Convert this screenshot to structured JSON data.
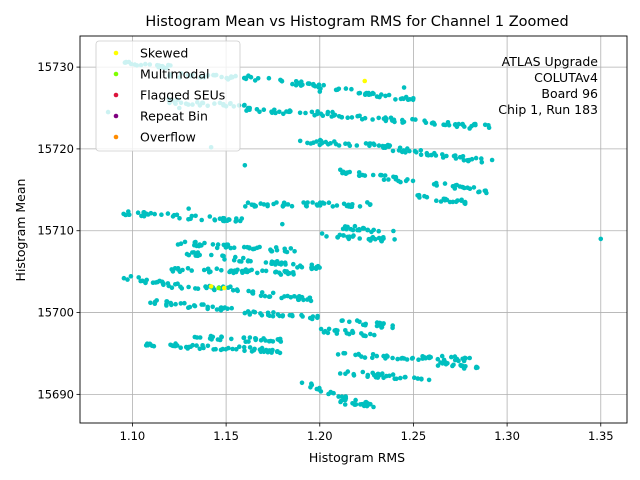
{
  "chart_data": {
    "type": "scatter",
    "title": "Histogram Mean vs Histogram RMS for Channel 1 Zoomed",
    "xlabel": "Histogram RMS",
    "ylabel": "Histogram Mean",
    "xlim": [
      1.072,
      1.364
    ],
    "ylim": [
      15686.5,
      15733.8
    ],
    "xticks": [
      "1.10",
      "1.15",
      "1.20",
      "1.25",
      "1.30",
      "1.35"
    ],
    "xtick_values": [
      1.1,
      1.15,
      1.2,
      1.25,
      1.3,
      1.35
    ],
    "yticks": [
      "15690",
      "15700",
      "15710",
      "15720",
      "15730"
    ],
    "ytick_values": [
      15690,
      15700,
      15710,
      15720,
      15730
    ],
    "grid": true,
    "legend_position": "top-left",
    "legend": [
      {
        "label": "Skewed",
        "color": "#ffff00"
      },
      {
        "label": "Multimodal",
        "color": "#7fff00"
      },
      {
        "label": "Flagged SEUs",
        "color": "#dc143c"
      },
      {
        "label": "Repeat Bin",
        "color": "#800080"
      },
      {
        "label": "Overflow",
        "color": "#ff8c00"
      }
    ],
    "annotation": [
      "ATLAS Upgrade",
      "COLUTAv4",
      "Board 96",
      "Chip 1, Run 183"
    ],
    "main_series_color": "#00bfbf",
    "bands": [
      {
        "y0": 15730.5,
        "y1": 15730.1,
        "x0": 1.09,
        "x1": 1.12
      },
      {
        "y0": 15729.0,
        "y1": 15728.6,
        "x0": 1.12,
        "x1": 1.17
      },
      {
        "y0": 15728.6,
        "y1": 15726.0,
        "x0": 1.17,
        "x1": 1.25
      },
      {
        "y0": 15725.8,
        "y1": 15725.2,
        "x0": 1.12,
        "x1": 1.16
      },
      {
        "y0": 15724.8,
        "y1": 15724.2,
        "x0": 1.16,
        "x1": 1.21
      },
      {
        "y0": 15724.0,
        "y1": 15722.7,
        "x0": 1.21,
        "x1": 1.29
      },
      {
        "y0": 15721.0,
        "y1": 15720.2,
        "x0": 1.19,
        "x1": 1.24
      },
      {
        "y0": 15720.0,
        "y1": 15718.3,
        "x0": 1.24,
        "x1": 1.295
      },
      {
        "y0": 15717.3,
        "y1": 15716.0,
        "x0": 1.21,
        "x1": 1.25
      },
      {
        "y0": 15715.8,
        "y1": 15714.8,
        "x0": 1.26,
        "x1": 1.29
      },
      {
        "y0": 15714.2,
        "y1": 15713.5,
        "x0": 1.25,
        "x1": 1.28
      },
      {
        "y0": 15713.2,
        "y1": 15713.2,
        "x0": 1.16,
        "x1": 1.23
      },
      {
        "y0": 15712.2,
        "y1": 15711.2,
        "x0": 1.095,
        "x1": 1.16
      },
      {
        "y0": 15710.5,
        "y1": 15709.8,
        "x0": 1.21,
        "x1": 1.24
      },
      {
        "y0": 15709.5,
        "y1": 15708.8,
        "x0": 1.2,
        "x1": 1.24
      },
      {
        "y0": 15708.5,
        "y1": 15707.5,
        "x0": 1.125,
        "x1": 1.19
      },
      {
        "y0": 15707.3,
        "y1": 15705.5,
        "x0": 1.125,
        "x1": 1.2
      },
      {
        "y0": 15705.3,
        "y1": 15704.8,
        "x0": 1.12,
        "x1": 1.19
      },
      {
        "y0": 15704.3,
        "y1": 15703.5,
        "x0": 1.095,
        "x1": 1.12
      },
      {
        "y0": 15703.3,
        "y1": 15702.8,
        "x0": 1.12,
        "x1": 1.16
      },
      {
        "y0": 15702.5,
        "y1": 15701.5,
        "x0": 1.16,
        "x1": 1.2
      },
      {
        "y0": 15701.3,
        "y1": 15700.2,
        "x0": 1.11,
        "x1": 1.16
      },
      {
        "y0": 15700.0,
        "y1": 15699.3,
        "x0": 1.16,
        "x1": 1.2
      },
      {
        "y0": 15699.0,
        "y1": 15698.3,
        "x0": 1.21,
        "x1": 1.24
      },
      {
        "y0": 15697.8,
        "y1": 15697.3,
        "x0": 1.2,
        "x1": 1.23
      },
      {
        "y0": 15697.0,
        "y1": 15696.5,
        "x0": 1.13,
        "x1": 1.18
      },
      {
        "y0": 15696.2,
        "y1": 15695.3,
        "x0": 1.1,
        "x1": 1.18
      },
      {
        "y0": 15694.8,
        "y1": 15694.3,
        "x0": 1.21,
        "x1": 1.28
      },
      {
        "y0": 15693.8,
        "y1": 15693.2,
        "x0": 1.26,
        "x1": 1.285
      },
      {
        "y0": 15692.7,
        "y1": 15691.8,
        "x0": 1.21,
        "x1": 1.26
      },
      {
        "y0": 15691.5,
        "y1": 15689.0,
        "x0": 1.19,
        "x1": 1.22
      },
      {
        "y0": 15689.0,
        "y1": 15688.7,
        "x0": 1.21,
        "x1": 1.23
      }
    ],
    "isolated_points": [
      {
        "x": 1.35,
        "y": 15709.0
      },
      {
        "x": 1.087,
        "y": 15724.5
      },
      {
        "x": 1.125,
        "y": 15725.0
      },
      {
        "x": 1.142,
        "y": 15720.2
      },
      {
        "x": 1.16,
        "y": 15718.0
      },
      {
        "x": 1.2,
        "y": 15727.0
      },
      {
        "x": 1.227,
        "y": 15688.8
      },
      {
        "x": 1.245,
        "y": 15727.5
      },
      {
        "x": 1.28,
        "y": 15722.5
      },
      {
        "x": 1.2,
        "y": 15720.5
      },
      {
        "x": 1.13,
        "y": 15712.7
      },
      {
        "x": 1.18,
        "y": 15710.8
      }
    ],
    "highlighted_points": [
      {
        "x": 1.224,
        "y": 15728.3,
        "category": "Skewed"
      },
      {
        "x": 1.142,
        "y": 15703.2,
        "category": "Skewed"
      },
      {
        "x": 1.149,
        "y": 15703.0,
        "category": "Skewed"
      },
      {
        "x": 1.146,
        "y": 15703.0,
        "category": "Multimodal"
      }
    ]
  }
}
